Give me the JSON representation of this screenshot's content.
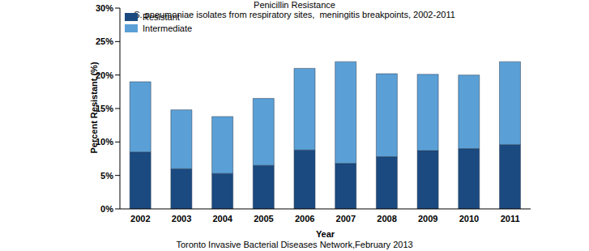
{
  "chart_data": {
    "type": "bar",
    "title": "Penicillin Resistance",
    "subtitle": "S. pneumoniae isolates from respiratory sites,  meningitis breakpoints, 2002-2011",
    "x_label": "Year",
    "y_label": "Percent Resistant (%)",
    "annotation": "Toronto Invasive Bacterial Diseases Network,February 2013",
    "categories": [
      "2002",
      "2003",
      "2004",
      "2005",
      "2006",
      "2007",
      "2008",
      "2009",
      "2010",
      "2011"
    ],
    "series": [
      {
        "name": "Resistant",
        "color": "#1a4a80",
        "values": [
          8.5,
          6,
          5.3,
          6.5,
          8.8,
          6.8,
          7.8,
          8.7,
          9,
          9.6
        ]
      },
      {
        "name": "Intermediate",
        "color": "#5aa0d6",
        "values": [
          10.5,
          8.8,
          8.5,
          10,
          12.2,
          15.2,
          12.4,
          11.4,
          11,
          12.4
        ]
      }
    ],
    "stacked": true,
    "ylim": [
      0,
      30
    ],
    "yticks": [
      {
        "value": 0,
        "label": "0%"
      },
      {
        "value": 5,
        "label": "5%"
      },
      {
        "value": 10,
        "label": "10%"
      },
      {
        "value": 15,
        "label": "15%"
      },
      {
        "value": 20,
        "label": "20%"
      },
      {
        "value": 25,
        "label": "25%"
      },
      {
        "value": 30,
        "label": "30%"
      }
    ],
    "grid": false,
    "legend": "top-left"
  }
}
